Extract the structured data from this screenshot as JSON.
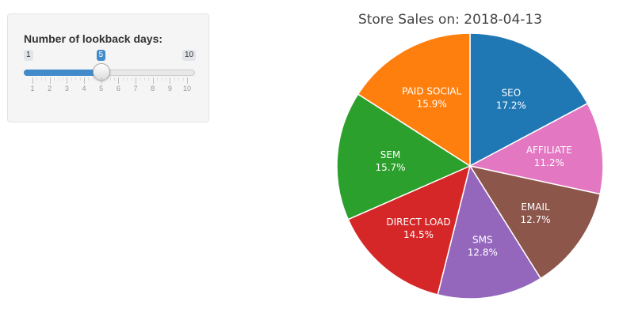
{
  "slider": {
    "label": "Number of lookback days:",
    "min": 1,
    "max": 10,
    "value": 5,
    "min_label": "1",
    "max_label": "10",
    "value_label": "5",
    "tick_labels": [
      "1",
      "2",
      "3",
      "4",
      "5",
      "6",
      "7",
      "8",
      "9",
      "10"
    ],
    "accent_color": "#428bca"
  },
  "chart_data": {
    "type": "pie",
    "title": "Store Sales on: 2018-04-13",
    "slices": [
      {
        "label": "SEO",
        "value": 17.2,
        "percent_text": "17.2%",
        "color": "#1f77b4"
      },
      {
        "label": "AFFILIATE",
        "value": 11.2,
        "percent_text": "11.2%",
        "color": "#e377c2"
      },
      {
        "label": "EMAIL",
        "value": 12.7,
        "percent_text": "12.7%",
        "color": "#8c564b"
      },
      {
        "label": "SMS",
        "value": 12.8,
        "percent_text": "12.8%",
        "color": "#9467bd"
      },
      {
        "label": "DIRECT LOAD",
        "value": 14.5,
        "percent_text": "14.5%",
        "color": "#d62728"
      },
      {
        "label": "SEM",
        "value": 15.7,
        "percent_text": "15.7%",
        "color": "#2ca02c"
      },
      {
        "label": "PAID SOCIAL",
        "value": 15.9,
        "percent_text": "15.9%",
        "color": "#ff7f0e"
      }
    ]
  }
}
